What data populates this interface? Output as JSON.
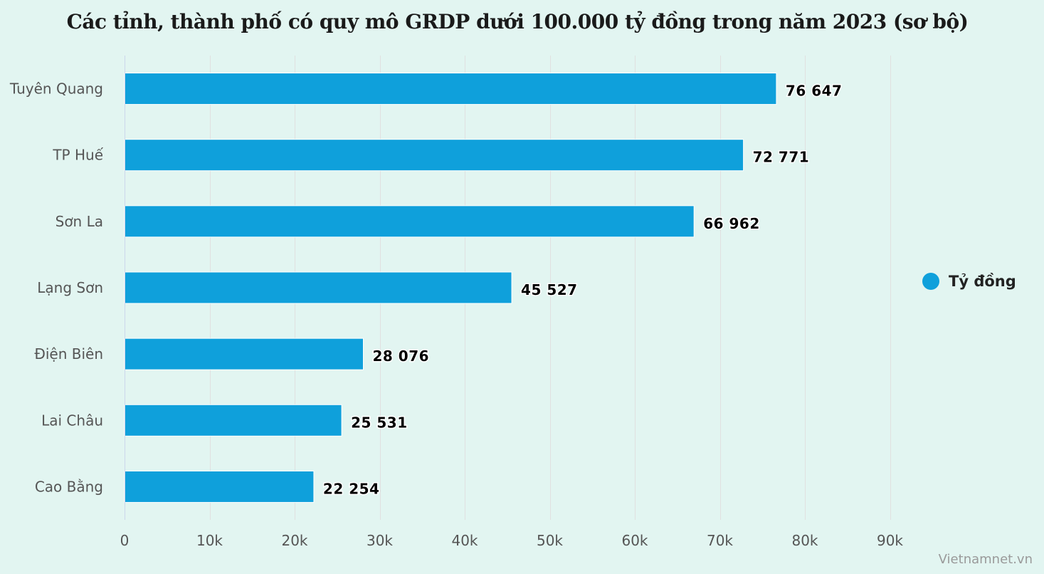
{
  "chart_data": {
    "type": "bar",
    "orientation": "horizontal",
    "title": "Các tỉnh, thành phố có quy mô GRDP dưới 100.000 tỷ đồng trong năm 2023 (sơ bộ)",
    "categories": [
      "Tuyên Quang",
      "TP Huế",
      "Sơn La",
      "Lạng Sơn",
      "Điện Biên",
      "Lai Châu",
      "Cao Bằng"
    ],
    "series": [
      {
        "name": "Tỷ đồng",
        "values": [
          76647,
          72771,
          66962,
          45527,
          28076,
          25531,
          22254
        ],
        "labels": [
          "76 647",
          "72 771",
          "66 962",
          "45 527",
          "28 076",
          "25 531",
          "22 254"
        ],
        "color": "#0fa0db"
      }
    ],
    "xlim": [
      0,
      95000
    ],
    "xticks": [
      0,
      10000,
      20000,
      30000,
      40000,
      50000,
      60000,
      70000,
      80000,
      90000
    ],
    "xtick_labels": [
      "0",
      "10k",
      "20k",
      "30k",
      "40k",
      "50k",
      "60k",
      "70k",
      "80k",
      "90k"
    ],
    "xlabel": "",
    "ylabel": "",
    "grid": true,
    "legend_position": "right"
  },
  "colors": {
    "background": "#e2f5f1",
    "gridline": "#e0e0e0",
    "axis": "#ccd6eb"
  },
  "source": "Vietnamnet.vn"
}
